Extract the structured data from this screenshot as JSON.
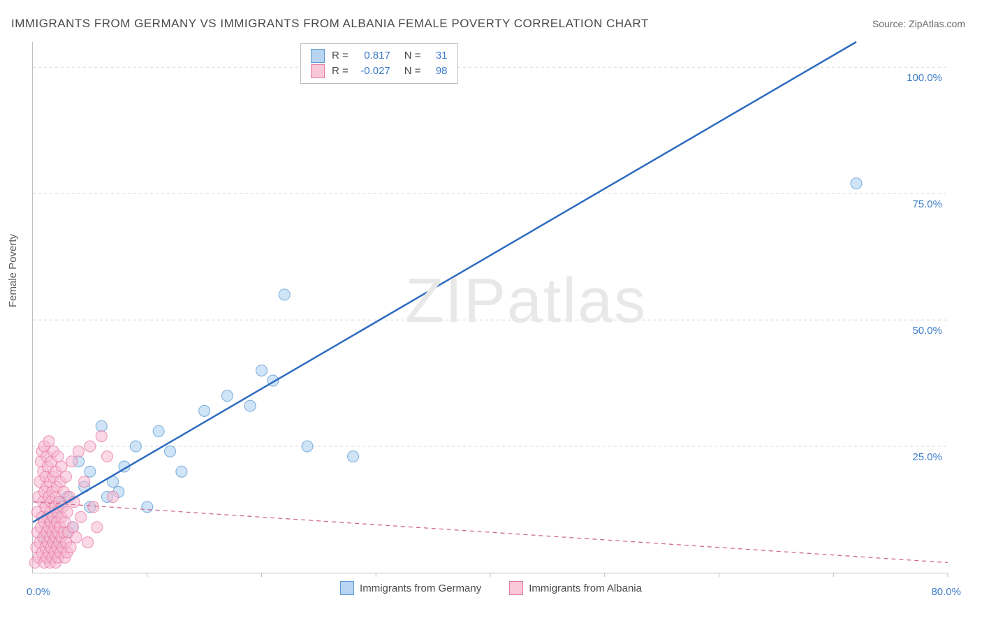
{
  "title": "IMMIGRANTS FROM GERMANY VS IMMIGRANTS FROM ALBANIA FEMALE POVERTY CORRELATION CHART",
  "source_prefix": "Source: ",
  "source_name": "ZipAtlas.com",
  "ylabel": "Female Poverty",
  "watermark": "ZIPatlas",
  "x_origin_label": "0.0%",
  "x_max_label": "80.0%",
  "legend_top": {
    "series": [
      {
        "swatch_fill": "#b8d4f0",
        "swatch_stroke": "#5b9bd5",
        "r_label": "R =",
        "r_value": "0.817",
        "n_label": "N =",
        "n_value": "31",
        "value_color": "#3d7cc9"
      },
      {
        "swatch_fill": "#f8c8d8",
        "swatch_stroke": "#e87ca5",
        "r_label": "R =",
        "r_value": "-0.027",
        "n_label": "N =",
        "n_value": "98",
        "value_color": "#3d7cc9"
      }
    ]
  },
  "legend_bottom": {
    "items": [
      {
        "swatch_fill": "#b8d4f0",
        "swatch_stroke": "#5b9bd5",
        "label": "Immigrants from Germany"
      },
      {
        "swatch_fill": "#f8c8d8",
        "swatch_stroke": "#e87ca5",
        "label": "Immigrants from Albania"
      }
    ]
  },
  "chart": {
    "type": "scatter",
    "xlim": [
      0,
      80
    ],
    "ylim": [
      0,
      105
    ],
    "x_ticks": [
      10,
      20,
      30,
      40,
      50,
      60,
      70,
      80
    ],
    "y_ticks": [
      25,
      50,
      75,
      100
    ],
    "y_tick_labels": [
      "25.0%",
      "50.0%",
      "75.0%",
      "100.0%"
    ],
    "y_tick_color": "#3d7cc9",
    "grid_color": "#d8d8d8",
    "background": "#ffffff",
    "marker_radius": 8,
    "marker_opacity": 0.55,
    "series": [
      {
        "name": "germany",
        "color_fill": "#a8ceee",
        "color_stroke": "#5b9bd5",
        "trend": {
          "type": "solid",
          "color": "#2e6bbf",
          "width": 2.5,
          "x1": 0,
          "y1": 10,
          "x2": 72,
          "y2": 105
        },
        "points": [
          [
            1,
            7
          ],
          [
            1.5,
            10
          ],
          [
            2,
            12
          ],
          [
            2,
            6
          ],
          [
            2.5,
            14
          ],
          [
            3,
            15
          ],
          [
            3,
            8
          ],
          [
            3.5,
            9
          ],
          [
            4,
            22
          ],
          [
            4.5,
            17
          ],
          [
            5,
            13
          ],
          [
            5,
            20
          ],
          [
            6,
            29
          ],
          [
            6.5,
            15
          ],
          [
            7,
            18
          ],
          [
            7.5,
            16
          ],
          [
            8,
            21
          ],
          [
            9,
            25
          ],
          [
            10,
            13
          ],
          [
            11,
            28
          ],
          [
            12,
            24
          ],
          [
            13,
            20
          ],
          [
            15,
            32
          ],
          [
            17,
            35
          ],
          [
            19,
            33
          ],
          [
            20,
            40
          ],
          [
            21,
            38
          ],
          [
            22,
            55
          ],
          [
            24,
            25
          ],
          [
            28,
            23
          ],
          [
            72,
            77
          ]
        ]
      },
      {
        "name": "albania",
        "color_fill": "#f6b8cf",
        "color_stroke": "#e87ca5",
        "trend": {
          "type": "dashed",
          "color": "#d06a95",
          "width": 1.3,
          "x1": 0,
          "y1": 14,
          "x2": 80,
          "y2": 2
        },
        "points": [
          [
            0.2,
            2
          ],
          [
            0.3,
            5
          ],
          [
            0.4,
            8
          ],
          [
            0.4,
            12
          ],
          [
            0.5,
            3
          ],
          [
            0.5,
            15
          ],
          [
            0.6,
            6
          ],
          [
            0.6,
            18
          ],
          [
            0.7,
            9
          ],
          [
            0.7,
            22
          ],
          [
            0.8,
            4
          ],
          [
            0.8,
            11
          ],
          [
            0.8,
            24
          ],
          [
            0.9,
            7
          ],
          [
            0.9,
            14
          ],
          [
            0.9,
            20
          ],
          [
            1,
            2
          ],
          [
            1,
            10
          ],
          [
            1,
            16
          ],
          [
            1,
            25
          ],
          [
            1.1,
            5
          ],
          [
            1.1,
            13
          ],
          [
            1.1,
            19
          ],
          [
            1.2,
            3
          ],
          [
            1.2,
            8
          ],
          [
            1.2,
            17
          ],
          [
            1.2,
            23
          ],
          [
            1.3,
            6
          ],
          [
            1.3,
            11
          ],
          [
            1.3,
            21
          ],
          [
            1.4,
            4
          ],
          [
            1.4,
            9
          ],
          [
            1.4,
            15
          ],
          [
            1.4,
            26
          ],
          [
            1.5,
            2
          ],
          [
            1.5,
            7
          ],
          [
            1.5,
            12
          ],
          [
            1.5,
            18
          ],
          [
            1.6,
            5
          ],
          [
            1.6,
            10
          ],
          [
            1.6,
            14
          ],
          [
            1.6,
            22
          ],
          [
            1.7,
            3
          ],
          [
            1.7,
            8
          ],
          [
            1.7,
            16
          ],
          [
            1.8,
            6
          ],
          [
            1.8,
            11
          ],
          [
            1.8,
            19
          ],
          [
            1.8,
            24
          ],
          [
            1.9,
            4
          ],
          [
            1.9,
            9
          ],
          [
            1.9,
            13
          ],
          [
            2,
            2
          ],
          [
            2,
            7
          ],
          [
            2,
            15
          ],
          [
            2,
            20
          ],
          [
            2.1,
            5
          ],
          [
            2.1,
            10
          ],
          [
            2.1,
            17
          ],
          [
            2.2,
            3
          ],
          [
            2.2,
            8
          ],
          [
            2.2,
            12
          ],
          [
            2.2,
            23
          ],
          [
            2.3,
            6
          ],
          [
            2.3,
            14
          ],
          [
            2.4,
            4
          ],
          [
            2.4,
            9
          ],
          [
            2.4,
            18
          ],
          [
            2.5,
            7
          ],
          [
            2.5,
            11
          ],
          [
            2.5,
            21
          ],
          [
            2.6,
            5
          ],
          [
            2.6,
            13
          ],
          [
            2.7,
            8
          ],
          [
            2.7,
            16
          ],
          [
            2.8,
            3
          ],
          [
            2.8,
            10
          ],
          [
            2.9,
            6
          ],
          [
            2.9,
            19
          ],
          [
            3,
            4
          ],
          [
            3,
            12
          ],
          [
            3.1,
            8
          ],
          [
            3.2,
            15
          ],
          [
            3.3,
            5
          ],
          [
            3.4,
            22
          ],
          [
            3.5,
            9
          ],
          [
            3.6,
            14
          ],
          [
            3.8,
            7
          ],
          [
            4,
            24
          ],
          [
            4.2,
            11
          ],
          [
            4.5,
            18
          ],
          [
            4.8,
            6
          ],
          [
            5,
            25
          ],
          [
            5.3,
            13
          ],
          [
            5.6,
            9
          ],
          [
            6,
            27
          ],
          [
            6.5,
            23
          ],
          [
            7,
            15
          ]
        ]
      }
    ]
  }
}
